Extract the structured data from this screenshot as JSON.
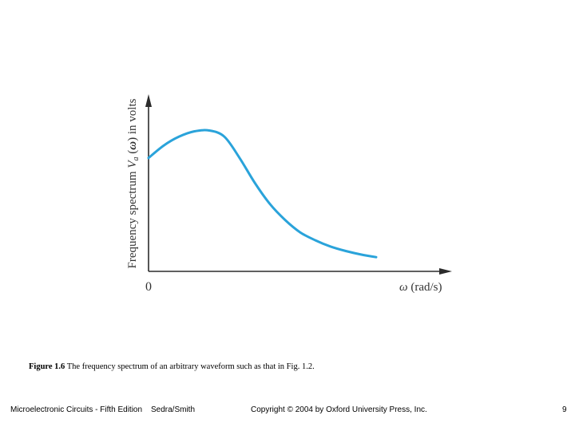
{
  "chart_data": {
    "type": "line",
    "title": "",
    "ylabel_parts": {
      "prefix": "Frequency spectrum ",
      "var": "V",
      "sub": "a",
      "middle": " (",
      "omega": "ω",
      "suffix": ") in volts"
    },
    "xlabel_parts": {
      "omega": "ω",
      "unit": " (rad/s)"
    },
    "origin_label": "0",
    "xlim": [
      0,
      10
    ],
    "ylim": [
      0,
      1.0
    ],
    "series": [
      {
        "name": "spectrum",
        "color": "#2aa3da",
        "x": [
          0,
          0.5,
          1.0,
          1.5,
          2.0,
          2.5,
          3.0,
          3.5,
          4.0,
          4.5,
          5.0,
          5.5,
          6.0,
          6.5,
          7.0,
          7.5
        ],
        "y": [
          0.64,
          0.71,
          0.76,
          0.79,
          0.795,
          0.76,
          0.64,
          0.5,
          0.38,
          0.29,
          0.22,
          0.175,
          0.14,
          0.115,
          0.095,
          0.08
        ]
      }
    ]
  },
  "caption": {
    "label": "Figure 1.6",
    "text": "  The frequency spectrum of an arbitrary waveform such as that in Fig. 1.2."
  },
  "footer": {
    "book": "Microelectronic Circuits - Fifth Edition",
    "authors": "Sedra/Smith",
    "copyright": "Copyright © 2004 by Oxford University Press, Inc.",
    "page": "9"
  }
}
